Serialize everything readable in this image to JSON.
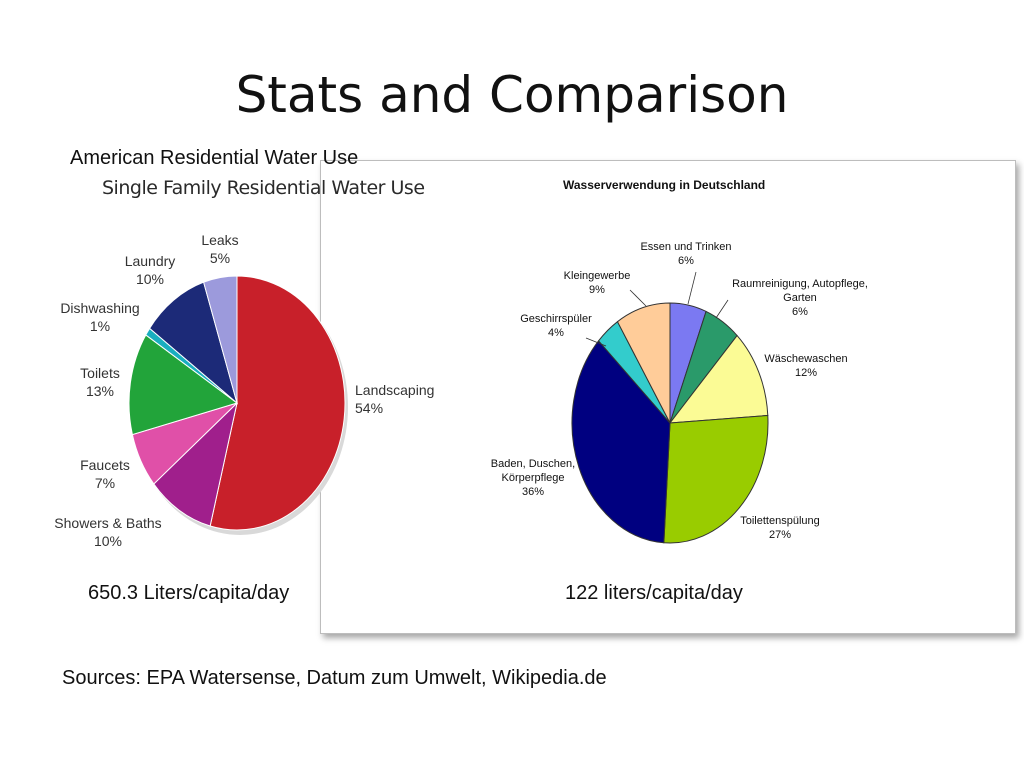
{
  "slide": {
    "title": "Stats and Comparison",
    "left_caption": "American Residential Water Use",
    "us_per_capita": "650.3 Liters/capita/day",
    "de_per_capita": "122 liters/capita/day",
    "sources": "Sources: EPA Watersense, Datum zum Umwelt, Wikipedia.de"
  },
  "chart_data": [
    {
      "type": "pie",
      "title": "Single Family Residential Water Use",
      "slices": [
        {
          "label": "Landscaping",
          "value": 54,
          "value_label": "54%",
          "color": "#c8202a"
        },
        {
          "label": "Showers & Baths",
          "value": 10,
          "value_label": "10%",
          "color": "#a01f8c"
        },
        {
          "label": "Faucets",
          "value": 7,
          "value_label": "7%",
          "color": "#e050a8"
        },
        {
          "label": "Toilets",
          "value": 13,
          "value_label": "13%",
          "color": "#22a43a"
        },
        {
          "label": "Dishwashing",
          "value": 1,
          "value_label": "1%",
          "color": "#19aebf"
        },
        {
          "label": "Laundry",
          "value": 10,
          "value_label": "10%",
          "color": "#1c2a78"
        },
        {
          "label": "Leaks",
          "value": 5,
          "value_label": "5%",
          "color": "#9c9adc"
        }
      ]
    },
    {
      "type": "pie",
      "title": "Wasserverwendung in Deutschland",
      "slices": [
        {
          "label": "Essen und Trinken",
          "value": 6,
          "value_label": "6%",
          "color": "#7b79f2"
        },
        {
          "label": "Raumreinigung, Autopflege, Garten",
          "value": 6,
          "value_label": "6%",
          "color": "#2a9a6a"
        },
        {
          "label": "Wäschewaschen",
          "value": 12,
          "value_label": "12%",
          "color": "#fbfb95"
        },
        {
          "label": "Toilettenspülung",
          "value": 27,
          "value_label": "27%",
          "color": "#99cc00"
        },
        {
          "label": "Baden, Duschen, Körperpflege",
          "value": 36,
          "value_label": "36%",
          "color": "#000080"
        },
        {
          "label": "Geschirrspüler",
          "value": 4,
          "value_label": "4%",
          "color": "#33cccc"
        },
        {
          "label": "Kleingewerbe",
          "value": 9,
          "value_label": "9%",
          "color": "#ffcc99"
        }
      ]
    }
  ]
}
